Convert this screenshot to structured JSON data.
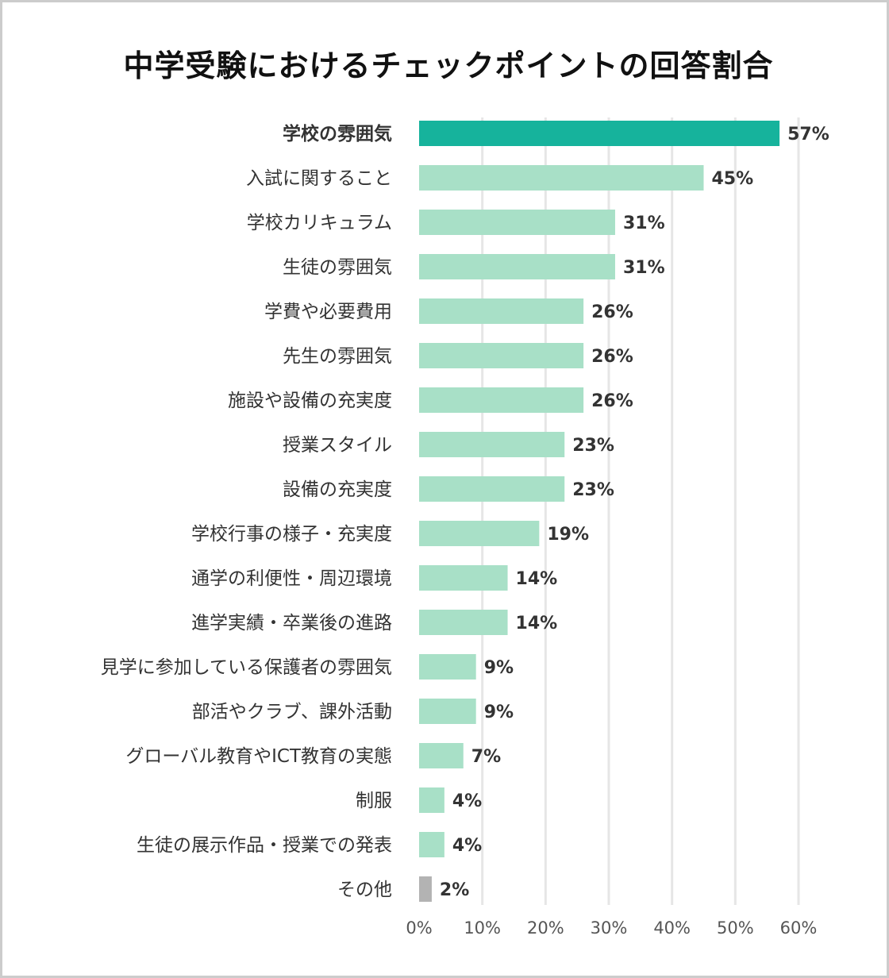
{
  "chart_data": {
    "type": "bar",
    "orientation": "horizontal",
    "title": "中学受験におけるチェックポイントの回答割合",
    "categories": [
      "学校の雰囲気",
      "入試に関すること",
      "学校カリキュラム",
      "生徒の雰囲気",
      "学費や必要費用",
      "先生の雰囲気",
      "施設や設備の充実度",
      "授業スタイル",
      "設備の充実度",
      "学校行事の様子・充実度",
      "通学の利便性・周辺環境",
      "進学実績・卒業後の進路",
      "見学に参加している保護者の雰囲気",
      "部活やクラブ、課外活動",
      "グローバル教育やICT教育の実態",
      "制服",
      "生徒の展示作品・授業での発表",
      "その他"
    ],
    "values": [
      57,
      45,
      31,
      31,
      26,
      26,
      26,
      23,
      23,
      19,
      14,
      14,
      9,
      9,
      7,
      4,
      4,
      2
    ],
    "value_labels": [
      "57%",
      "45%",
      "31%",
      "31%",
      "26%",
      "26%",
      "26%",
      "23%",
      "23%",
      "19%",
      "14%",
      "14%",
      "9%",
      "9%",
      "7%",
      "4%",
      "4%",
      "2%"
    ],
    "xlim": [
      0,
      60
    ],
    "ticks": [
      0,
      10,
      20,
      30,
      40,
      50,
      60
    ],
    "tick_labels": [
      "0%",
      "10%",
      "20%",
      "30%",
      "40%",
      "50%",
      "60%"
    ],
    "xlabel": "",
    "ylabel": "",
    "grid": "vertical",
    "highlight_index": 0,
    "other_index": 17,
    "colors": {
      "highlight": "#16b39c",
      "default": "#a8e0c7",
      "other": "#b3b3b3",
      "grid": "#e6e6e6",
      "label": "#333333"
    }
  }
}
